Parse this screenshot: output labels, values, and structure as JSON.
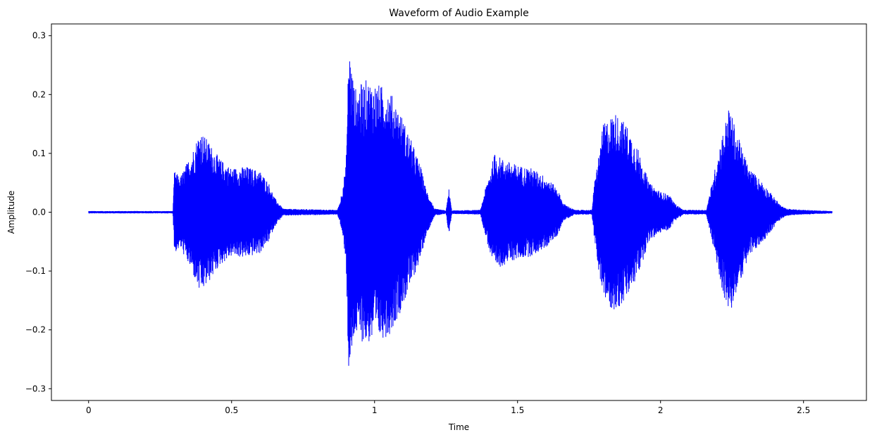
{
  "chart_data": {
    "type": "line",
    "title": "Waveform of Audio Example",
    "xlabel": "Time",
    "ylabel": "Amplitude",
    "xlim": [
      -0.13,
      2.72
    ],
    "ylim": [
      -0.32,
      0.32
    ],
    "grid": false,
    "legend": "none",
    "colors": {
      "series": "#0000ff",
      "axes": "#000000",
      "background": "#ffffff"
    },
    "x_ticks": [
      {
        "value": 0,
        "label": "0"
      },
      {
        "value": 0.5,
        "label": "0.5"
      },
      {
        "value": 1,
        "label": "1"
      },
      {
        "value": 1.5,
        "label": "1.5"
      },
      {
        "value": 2,
        "label": "2"
      },
      {
        "value": 2.5,
        "label": "2.5"
      }
    ],
    "y_ticks": [
      {
        "value": -0.3,
        "label": "−0.3"
      },
      {
        "value": -0.2,
        "label": "−0.2"
      },
      {
        "value": -0.1,
        "label": "−0.1"
      },
      {
        "value": 0.0,
        "label": "0.0"
      },
      {
        "value": 0.1,
        "label": "0.1"
      },
      {
        "value": 0.2,
        "label": "0.2"
      },
      {
        "value": 0.3,
        "label": "0.3"
      }
    ],
    "series": [
      {
        "duration": 2.6,
        "noise_floor": 0.002,
        "envelope": [
          [
            0.0,
            0.002
          ],
          [
            0.295,
            0.002
          ],
          [
            0.3,
            0.07
          ],
          [
            0.32,
            0.06
          ],
          [
            0.36,
            0.1
          ],
          [
            0.39,
            0.14
          ],
          [
            0.42,
            0.12
          ],
          [
            0.46,
            0.09
          ],
          [
            0.5,
            0.075
          ],
          [
            0.55,
            0.078
          ],
          [
            0.6,
            0.07
          ],
          [
            0.63,
            0.05
          ],
          [
            0.65,
            0.025
          ],
          [
            0.68,
            0.006
          ],
          [
            0.87,
            0.004
          ],
          [
            0.88,
            0.02
          ],
          [
            0.9,
            0.08
          ],
          [
            0.91,
            0.29
          ],
          [
            0.93,
            0.21
          ],
          [
            0.97,
            0.225
          ],
          [
            1.0,
            0.22
          ],
          [
            1.05,
            0.21
          ],
          [
            1.09,
            0.17
          ],
          [
            1.13,
            0.12
          ],
          [
            1.16,
            0.08
          ],
          [
            1.18,
            0.04
          ],
          [
            1.21,
            0.006
          ],
          [
            1.25,
            0.003
          ],
          [
            1.26,
            0.04
          ],
          [
            1.27,
            0.003
          ],
          [
            1.37,
            0.004
          ],
          [
            1.39,
            0.045
          ],
          [
            1.42,
            0.1
          ],
          [
            1.45,
            0.09
          ],
          [
            1.5,
            0.08
          ],
          [
            1.55,
            0.075
          ],
          [
            1.6,
            0.06
          ],
          [
            1.64,
            0.04
          ],
          [
            1.66,
            0.015
          ],
          [
            1.7,
            0.004
          ],
          [
            1.76,
            0.004
          ],
          [
            1.77,
            0.055
          ],
          [
            1.8,
            0.15
          ],
          [
            1.84,
            0.17
          ],
          [
            1.88,
            0.15
          ],
          [
            1.92,
            0.11
          ],
          [
            1.96,
            0.05
          ],
          [
            2.0,
            0.035
          ],
          [
            2.03,
            0.03
          ],
          [
            2.05,
            0.015
          ],
          [
            2.08,
            0.004
          ],
          [
            2.16,
            0.004
          ],
          [
            2.18,
            0.05
          ],
          [
            2.21,
            0.12
          ],
          [
            2.24,
            0.18
          ],
          [
            2.27,
            0.13
          ],
          [
            2.31,
            0.075
          ],
          [
            2.35,
            0.055
          ],
          [
            2.39,
            0.03
          ],
          [
            2.42,
            0.012
          ],
          [
            2.44,
            0.006
          ],
          [
            2.5,
            0.004
          ],
          [
            2.6,
            0.002
          ]
        ],
        "values_note_unit": "amplitude"
      }
    ]
  }
}
